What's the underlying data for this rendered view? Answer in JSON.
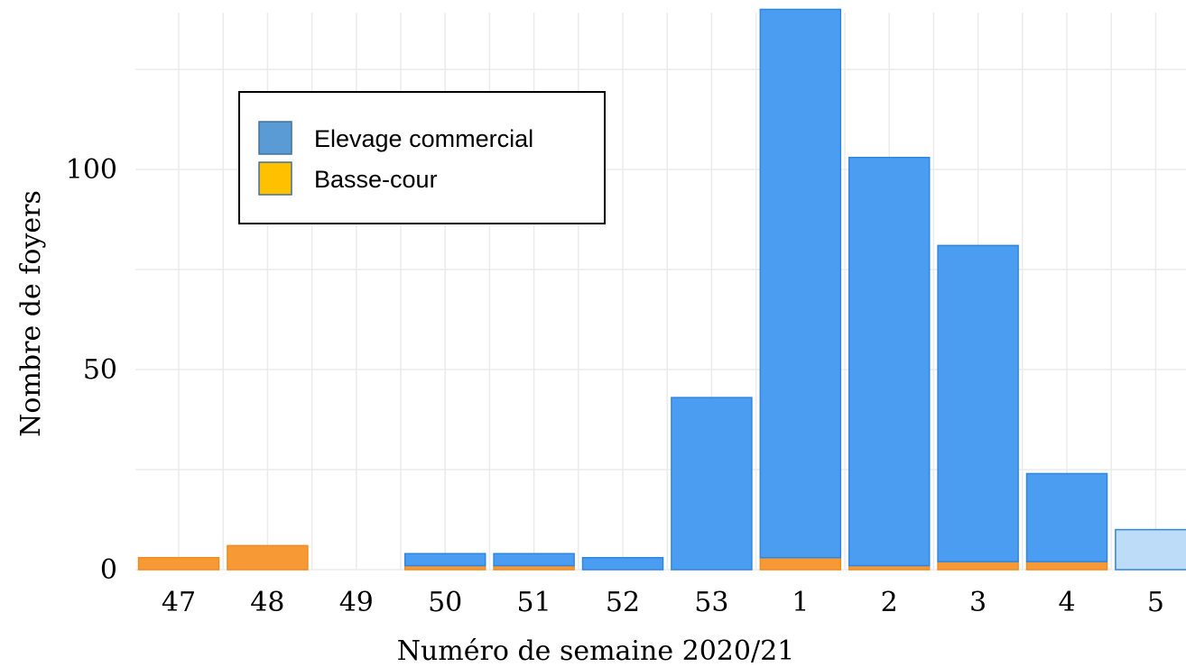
{
  "chart_data": {
    "type": "bar",
    "stacked": true,
    "categories": [
      "47",
      "48",
      "49",
      "50",
      "51",
      "52",
      "53",
      "1",
      "2",
      "3",
      "4",
      "5"
    ],
    "series": [
      {
        "name": "Basse-cour",
        "color": "#f79a35",
        "values": [
          3,
          6,
          0,
          1,
          1,
          0,
          0,
          3,
          1,
          2,
          2,
          0
        ]
      },
      {
        "name": "Elevage commercial",
        "color": "#4a9df0",
        "values": [
          0,
          0,
          0,
          3,
          3,
          3,
          43,
          137,
          102,
          79,
          22,
          10
        ]
      }
    ],
    "partial_categories": [
      "5"
    ],
    "partial_color": "#bcdcf8",
    "xlabel": "Numéro de semaine 2020/21",
    "ylabel": "Nombre de foyers",
    "ylim": [
      0,
      140
    ],
    "yticks": [
      0,
      50,
      100
    ],
    "grid": true,
    "legend": {
      "position": "top-left",
      "entries": [
        {
          "label": "Elevage commercial",
          "color": "#5b9bd5"
        },
        {
          "label": "Basse-cour",
          "color": "#ffc000"
        }
      ]
    }
  }
}
